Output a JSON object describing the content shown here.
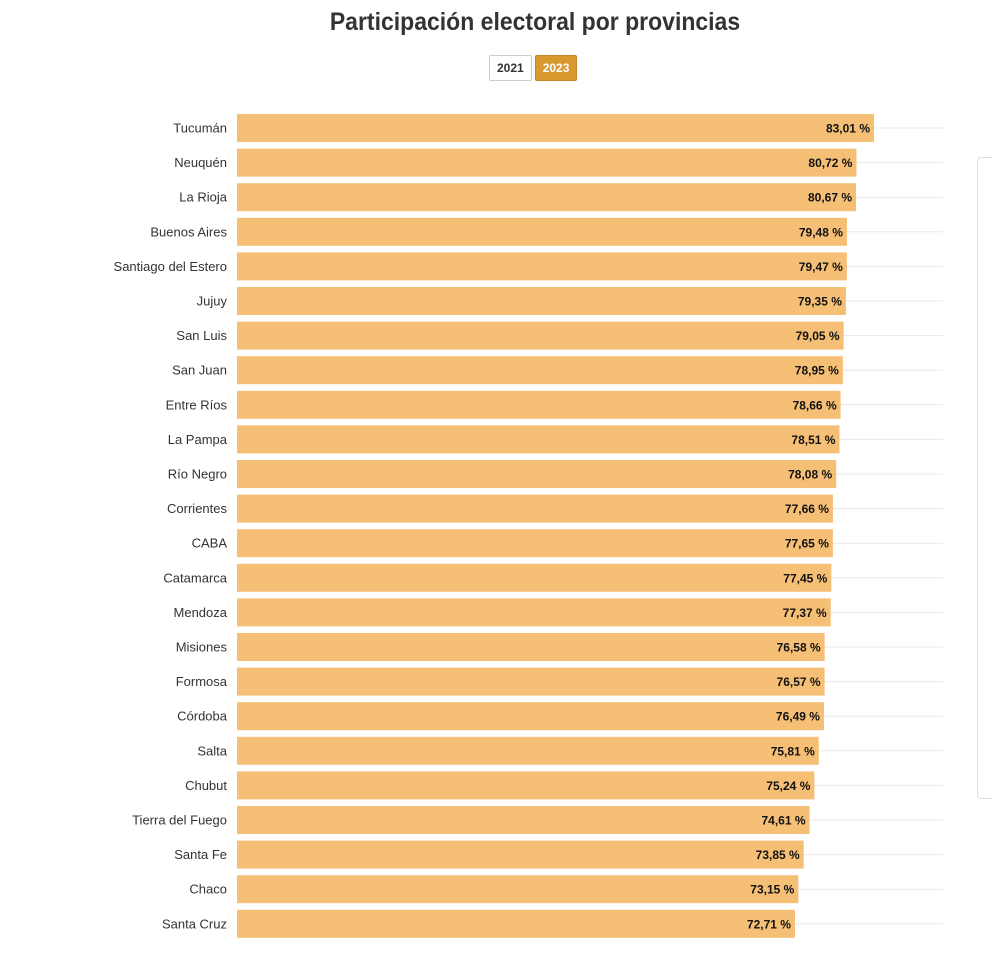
{
  "page": {
    "title": "Participación electoral por provincias"
  },
  "toggle": {
    "options": [
      "2021",
      "2023"
    ],
    "selected": "2023"
  },
  "colors": {
    "bar": "#f6bf76",
    "accent": "#d89a2e",
    "grid": "#e8e8e8"
  },
  "chart_data": {
    "type": "bar",
    "orientation": "horizontal",
    "title": "Participación electoral por provincias",
    "categories": [
      "Tucumán",
      "Neuquén",
      "La Rioja",
      "Buenos Aires",
      "Santiago del Estero",
      "Jujuy",
      "San Luis",
      "San Juan",
      "Entre Ríos",
      "La Pampa",
      "Río Negro",
      "Corrientes",
      "CABA",
      "Catamarca",
      "Mendoza",
      "Misiones",
      "Formosa",
      "Córdoba",
      "Salta",
      "Chubut",
      "Tierra del Fuego",
      "Santa Fe",
      "Chaco",
      "Santa Cruz"
    ],
    "values": [
      83.01,
      80.72,
      80.67,
      79.48,
      79.47,
      79.35,
      79.05,
      78.95,
      78.66,
      78.51,
      78.08,
      77.66,
      77.65,
      77.45,
      77.37,
      76.58,
      76.57,
      76.49,
      75.81,
      75.24,
      74.61,
      73.85,
      73.15,
      72.71
    ],
    "value_labels": [
      "83,01 %",
      "80,72 %",
      "80,67 %",
      "79,48 %",
      "79,47 %",
      "79,35 %",
      "79,05 %",
      "78,95 %",
      "78,66 %",
      "78,51 %",
      "78,08 %",
      "77,66 %",
      "77,65 %",
      "77,45 %",
      "77,37 %",
      "76,58 %",
      "76,57 %",
      "76,49 %",
      "75,81 %",
      "75,24 %",
      "74,61 %",
      "73,85 %",
      "73,15 %",
      "72,71 %"
    ],
    "xlim": [
      0,
      92
    ],
    "xlabel": "",
    "ylabel": "",
    "grid": true,
    "legend": "none"
  }
}
